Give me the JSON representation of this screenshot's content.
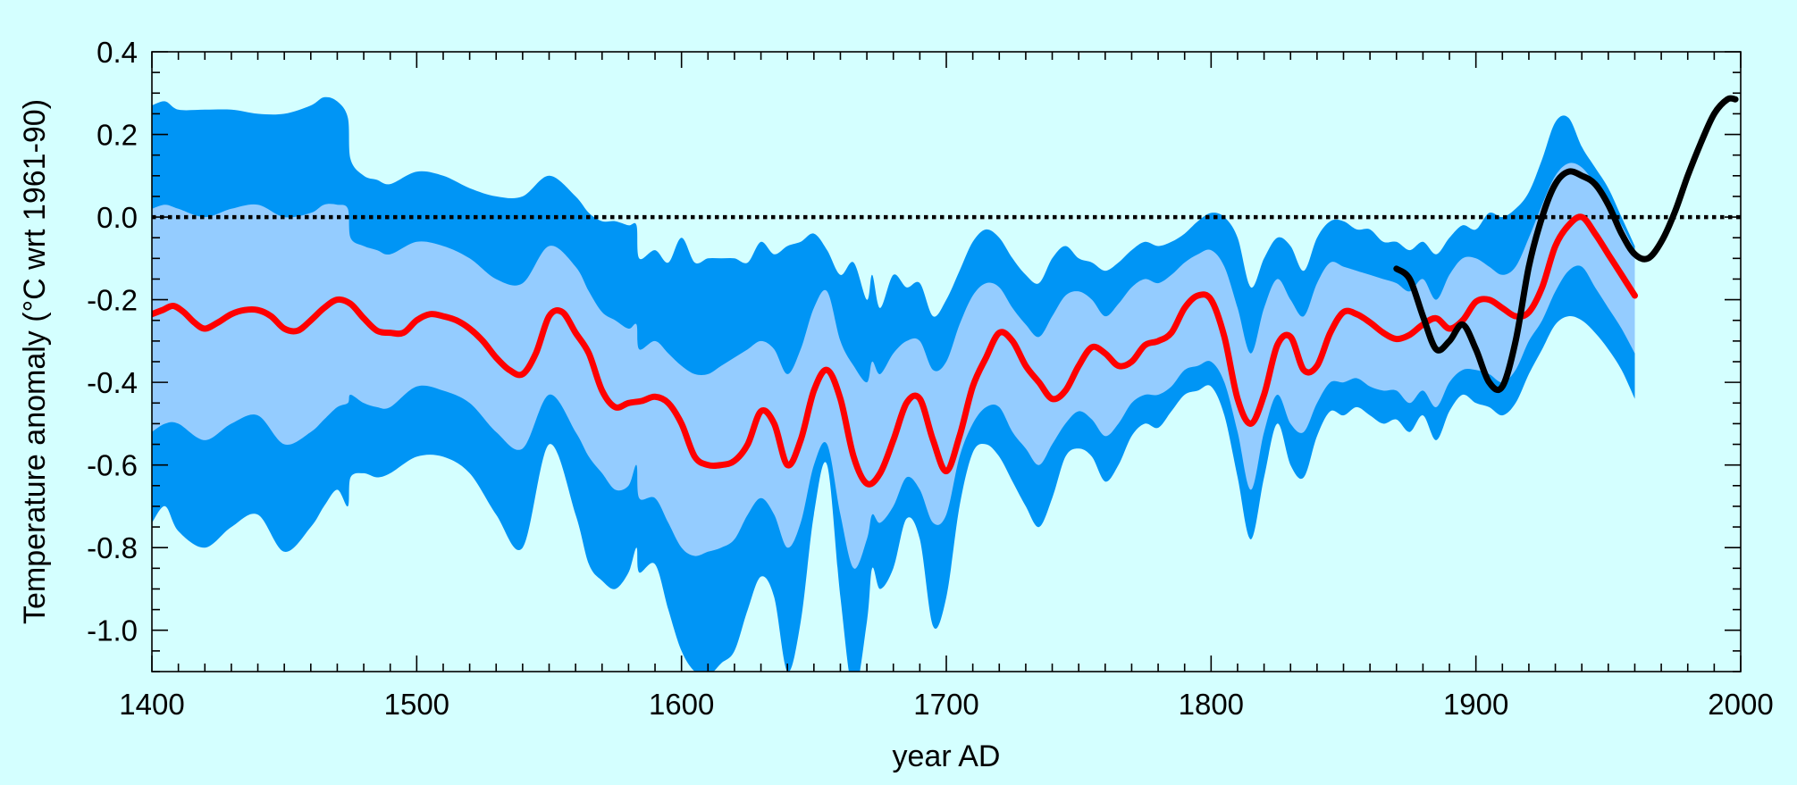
{
  "chart_data": {
    "type": "line",
    "title": "",
    "xlabel": "year AD",
    "ylabel": "Temperature anomaly (°C wrt 1961-90)",
    "xlim": [
      1400,
      2000
    ],
    "ylim": [
      -1.1,
      0.4
    ],
    "x_ticks": [
      1400,
      1500,
      1600,
      1700,
      1800,
      1900,
      2000
    ],
    "x_tick_labels": [
      "1400",
      "1500",
      "1600",
      "1700",
      "1800",
      "1900",
      "2000"
    ],
    "y_ticks": [
      0.4,
      0.2,
      0.0,
      -0.2,
      -0.4,
      -0.6,
      -0.8,
      -1.0
    ],
    "y_tick_labels": [
      "0.4",
      "0.2",
      "0.0",
      "-0.2",
      "-0.4",
      "-0.6",
      "-0.8",
      "-1.0"
    ],
    "grid": false,
    "reference_line": {
      "y": 0.0,
      "style": "dotted",
      "color": "#000000"
    },
    "colors": {
      "background": "#d4ffff",
      "outer_band": "#0095f5",
      "inner_band": "#94ccff",
      "reconstruction": "#ff0000",
      "instrumental": "#000000"
    },
    "series": [
      {
        "kind": "band",
        "fill": "outer",
        "x": [
          1400,
          1405,
          1410,
          1420,
          1430,
          1440,
          1450,
          1460,
          1465,
          1470,
          1474,
          1475,
          1480,
          1485,
          1490,
          1500,
          1510,
          1520,
          1530,
          1540,
          1550,
          1560,
          1565,
          1570,
          1575,
          1580,
          1583,
          1584,
          1590,
          1595,
          1600,
          1605,
          1610,
          1615,
          1620,
          1625,
          1630,
          1635,
          1640,
          1645,
          1650,
          1655,
          1660,
          1665,
          1670,
          1672,
          1675,
          1680,
          1685,
          1690,
          1695,
          1700,
          1705,
          1710,
          1715,
          1720,
          1725,
          1730,
          1735,
          1740,
          1745,
          1750,
          1755,
          1760,
          1765,
          1770,
          1775,
          1780,
          1785,
          1790,
          1795,
          1800,
          1805,
          1810,
          1815,
          1820,
          1825,
          1830,
          1835,
          1840,
          1845,
          1850,
          1855,
          1860,
          1865,
          1870,
          1875,
          1880,
          1885,
          1890,
          1895,
          1900,
          1905,
          1910,
          1915,
          1920,
          1925,
          1930,
          1935,
          1940,
          1945,
          1950,
          1955,
          1960
        ],
        "y_low": [
          -0.74,
          -0.7,
          -0.76,
          -0.8,
          -0.75,
          -0.72,
          -0.81,
          -0.75,
          -0.7,
          -0.66,
          -0.7,
          -0.63,
          -0.62,
          -0.63,
          -0.62,
          -0.58,
          -0.58,
          -0.62,
          -0.72,
          -0.8,
          -0.55,
          -0.72,
          -0.84,
          -0.88,
          -0.9,
          -0.86,
          -0.8,
          -0.86,
          -0.84,
          -0.95,
          -1.05,
          -1.1,
          -1.11,
          -1.08,
          -1.05,
          -0.95,
          -0.87,
          -0.92,
          -1.1,
          -0.98,
          -0.72,
          -0.6,
          -0.92,
          -1.15,
          -0.98,
          -0.85,
          -0.9,
          -0.85,
          -0.73,
          -0.78,
          -0.99,
          -0.92,
          -0.7,
          -0.57,
          -0.55,
          -0.58,
          -0.64,
          -0.7,
          -0.75,
          -0.68,
          -0.58,
          -0.56,
          -0.58,
          -0.64,
          -0.6,
          -0.53,
          -0.5,
          -0.51,
          -0.47,
          -0.43,
          -0.42,
          -0.41,
          -0.48,
          -0.63,
          -0.78,
          -0.63,
          -0.5,
          -0.6,
          -0.63,
          -0.53,
          -0.47,
          -0.48,
          -0.46,
          -0.48,
          -0.5,
          -0.49,
          -0.52,
          -0.48,
          -0.54,
          -0.47,
          -0.43,
          -0.45,
          -0.46,
          -0.48,
          -0.45,
          -0.38,
          -0.32,
          -0.26,
          -0.24,
          -0.25,
          -0.28,
          -0.32,
          -0.37,
          -0.44
        ],
        "y_high": [
          0.27,
          0.28,
          0.26,
          0.26,
          0.26,
          0.25,
          0.25,
          0.27,
          0.29,
          0.28,
          0.24,
          0.14,
          0.1,
          0.09,
          0.08,
          0.11,
          0.1,
          0.07,
          0.05,
          0.05,
          0.1,
          0.05,
          0.01,
          -0.01,
          -0.01,
          -0.02,
          -0.02,
          -0.1,
          -0.08,
          -0.11,
          -0.05,
          -0.11,
          -0.1,
          -0.1,
          -0.1,
          -0.11,
          -0.06,
          -0.09,
          -0.07,
          -0.06,
          -0.04,
          -0.08,
          -0.14,
          -0.11,
          -0.2,
          -0.14,
          -0.22,
          -0.14,
          -0.17,
          -0.16,
          -0.24,
          -0.2,
          -0.13,
          -0.06,
          -0.03,
          -0.05,
          -0.1,
          -0.14,
          -0.16,
          -0.1,
          -0.07,
          -0.1,
          -0.11,
          -0.13,
          -0.11,
          -0.08,
          -0.06,
          -0.07,
          -0.06,
          -0.04,
          -0.01,
          0.01,
          0.0,
          -0.05,
          -0.17,
          -0.1,
          -0.05,
          -0.07,
          -0.13,
          -0.05,
          -0.01,
          -0.01,
          -0.03,
          -0.03,
          -0.06,
          -0.06,
          -0.08,
          -0.06,
          -0.09,
          -0.05,
          -0.02,
          -0.03,
          0.01,
          0.0,
          0.02,
          0.06,
          0.14,
          0.23,
          0.24,
          0.17,
          0.12,
          0.07,
          0.0,
          -0.07
        ]
      },
      {
        "kind": "band",
        "fill": "inner",
        "x": [
          1400,
          1405,
          1410,
          1420,
          1430,
          1440,
          1450,
          1460,
          1465,
          1470,
          1474,
          1475,
          1480,
          1485,
          1490,
          1500,
          1510,
          1520,
          1530,
          1540,
          1550,
          1560,
          1565,
          1570,
          1575,
          1580,
          1583,
          1584,
          1590,
          1595,
          1600,
          1605,
          1610,
          1615,
          1620,
          1625,
          1630,
          1635,
          1640,
          1645,
          1650,
          1655,
          1660,
          1665,
          1670,
          1672,
          1675,
          1680,
          1685,
          1690,
          1695,
          1700,
          1705,
          1710,
          1715,
          1720,
          1725,
          1730,
          1735,
          1740,
          1745,
          1750,
          1755,
          1760,
          1765,
          1770,
          1775,
          1780,
          1785,
          1790,
          1795,
          1800,
          1805,
          1810,
          1815,
          1820,
          1825,
          1830,
          1835,
          1840,
          1845,
          1850,
          1855,
          1860,
          1865,
          1870,
          1875,
          1880,
          1885,
          1890,
          1895,
          1900,
          1905,
          1910,
          1915,
          1920,
          1925,
          1930,
          1935,
          1940,
          1945,
          1950,
          1955,
          1960
        ],
        "y_low": [
          -0.52,
          -0.5,
          -0.5,
          -0.54,
          -0.5,
          -0.48,
          -0.55,
          -0.52,
          -0.49,
          -0.46,
          -0.45,
          -0.43,
          -0.45,
          -0.46,
          -0.46,
          -0.41,
          -0.42,
          -0.45,
          -0.52,
          -0.56,
          -0.43,
          -0.52,
          -0.58,
          -0.62,
          -0.66,
          -0.65,
          -0.6,
          -0.68,
          -0.68,
          -0.74,
          -0.8,
          -0.82,
          -0.81,
          -0.8,
          -0.78,
          -0.72,
          -0.68,
          -0.72,
          -0.8,
          -0.74,
          -0.6,
          -0.55,
          -0.72,
          -0.85,
          -0.78,
          -0.72,
          -0.74,
          -0.7,
          -0.63,
          -0.66,
          -0.74,
          -0.72,
          -0.58,
          -0.5,
          -0.46,
          -0.46,
          -0.52,
          -0.56,
          -0.6,
          -0.55,
          -0.5,
          -0.47,
          -0.49,
          -0.53,
          -0.5,
          -0.45,
          -0.43,
          -0.43,
          -0.41,
          -0.37,
          -0.36,
          -0.35,
          -0.4,
          -0.52,
          -0.66,
          -0.52,
          -0.43,
          -0.5,
          -0.52,
          -0.45,
          -0.4,
          -0.4,
          -0.39,
          -0.41,
          -0.42,
          -0.42,
          -0.45,
          -0.42,
          -0.46,
          -0.4,
          -0.37,
          -0.37,
          -0.38,
          -0.4,
          -0.37,
          -0.3,
          -0.25,
          -0.18,
          -0.13,
          -0.12,
          -0.17,
          -0.22,
          -0.27,
          -0.33
        ],
        "y_high": [
          0.02,
          0.03,
          0.02,
          0.0,
          0.02,
          0.03,
          0.0,
          0.01,
          0.03,
          0.03,
          0.02,
          -0.05,
          -0.07,
          -0.08,
          -0.09,
          -0.06,
          -0.07,
          -0.1,
          -0.15,
          -0.16,
          -0.07,
          -0.12,
          -0.18,
          -0.23,
          -0.25,
          -0.27,
          -0.26,
          -0.32,
          -0.3,
          -0.33,
          -0.36,
          -0.38,
          -0.38,
          -0.36,
          -0.34,
          -0.32,
          -0.3,
          -0.32,
          -0.38,
          -0.32,
          -0.22,
          -0.18,
          -0.3,
          -0.36,
          -0.4,
          -0.35,
          -0.38,
          -0.33,
          -0.3,
          -0.3,
          -0.37,
          -0.35,
          -0.26,
          -0.19,
          -0.16,
          -0.17,
          -0.22,
          -0.26,
          -0.29,
          -0.24,
          -0.19,
          -0.18,
          -0.2,
          -0.24,
          -0.21,
          -0.17,
          -0.15,
          -0.16,
          -0.14,
          -0.11,
          -0.09,
          -0.08,
          -0.12,
          -0.22,
          -0.33,
          -0.22,
          -0.15,
          -0.2,
          -0.24,
          -0.16,
          -0.11,
          -0.12,
          -0.13,
          -0.14,
          -0.15,
          -0.16,
          -0.18,
          -0.15,
          -0.2,
          -0.14,
          -0.1,
          -0.1,
          -0.12,
          -0.14,
          -0.12,
          -0.05,
          0.03,
          0.1,
          0.13,
          0.12,
          0.08,
          0.03,
          -0.02,
          -0.08
        ]
      },
      {
        "kind": "line",
        "color": "#ff0000",
        "x": [
          1400,
          1404,
          1408,
          1412,
          1416,
          1420,
          1425,
          1430,
          1435,
          1440,
          1445,
          1450,
          1455,
          1460,
          1465,
          1470,
          1475,
          1480,
          1485,
          1490,
          1495,
          1500,
          1505,
          1510,
          1515,
          1520,
          1525,
          1530,
          1535,
          1540,
          1545,
          1550,
          1555,
          1560,
          1565,
          1570,
          1575,
          1580,
          1585,
          1590,
          1595,
          1600,
          1605,
          1610,
          1615,
          1620,
          1625,
          1630,
          1635,
          1640,
          1645,
          1650,
          1655,
          1660,
          1665,
          1670,
          1675,
          1680,
          1685,
          1690,
          1695,
          1700,
          1705,
          1710,
          1715,
          1720,
          1725,
          1730,
          1735,
          1740,
          1745,
          1750,
          1755,
          1760,
          1765,
          1770,
          1775,
          1780,
          1785,
          1790,
          1795,
          1800,
          1805,
          1810,
          1815,
          1820,
          1825,
          1830,
          1835,
          1840,
          1845,
          1850,
          1855,
          1860,
          1865,
          1870,
          1875,
          1880,
          1885,
          1890,
          1895,
          1900,
          1905,
          1910,
          1915,
          1920,
          1925,
          1930,
          1935,
          1940,
          1945,
          1950,
          1955,
          1960
        ],
        "y": [
          -0.235,
          -0.225,
          -0.215,
          -0.23,
          -0.255,
          -0.27,
          -0.255,
          -0.235,
          -0.225,
          -0.225,
          -0.24,
          -0.27,
          -0.275,
          -0.25,
          -0.22,
          -0.2,
          -0.21,
          -0.245,
          -0.275,
          -0.28,
          -0.28,
          -0.25,
          -0.235,
          -0.24,
          -0.25,
          -0.27,
          -0.3,
          -0.34,
          -0.37,
          -0.38,
          -0.33,
          -0.24,
          -0.23,
          -0.28,
          -0.33,
          -0.42,
          -0.46,
          -0.45,
          -0.445,
          -0.435,
          -0.45,
          -0.5,
          -0.58,
          -0.6,
          -0.6,
          -0.59,
          -0.55,
          -0.47,
          -0.5,
          -0.6,
          -0.54,
          -0.42,
          -0.37,
          -0.44,
          -0.58,
          -0.645,
          -0.62,
          -0.54,
          -0.45,
          -0.44,
          -0.54,
          -0.615,
          -0.53,
          -0.41,
          -0.34,
          -0.28,
          -0.3,
          -0.36,
          -0.4,
          -0.44,
          -0.42,
          -0.36,
          -0.315,
          -0.33,
          -0.36,
          -0.35,
          -0.31,
          -0.3,
          -0.28,
          -0.22,
          -0.19,
          -0.2,
          -0.29,
          -0.44,
          -0.5,
          -0.43,
          -0.31,
          -0.29,
          -0.37,
          -0.36,
          -0.28,
          -0.23,
          -0.235,
          -0.255,
          -0.28,
          -0.295,
          -0.285,
          -0.26,
          -0.245,
          -0.27,
          -0.25,
          -0.205,
          -0.2,
          -0.22,
          -0.24,
          -0.23,
          -0.17,
          -0.07,
          -0.02,
          -0.0,
          -0.04,
          -0.09,
          -0.14,
          -0.19
        ]
      },
      {
        "kind": "line",
        "color": "#000000",
        "x": [
          1870,
          1875,
          1880,
          1885,
          1890,
          1895,
          1900,
          1905,
          1910,
          1915,
          1920,
          1925,
          1930,
          1935,
          1940,
          1945,
          1950,
          1955,
          1960,
          1965,
          1970,
          1975,
          1980,
          1985,
          1990,
          1995,
          1998
        ],
        "y": [
          -0.125,
          -0.15,
          -0.24,
          -0.32,
          -0.3,
          -0.26,
          -0.32,
          -0.4,
          -0.41,
          -0.3,
          -0.12,
          0.0,
          0.08,
          0.11,
          0.1,
          0.08,
          0.03,
          -0.04,
          -0.09,
          -0.1,
          -0.06,
          0.01,
          0.1,
          0.18,
          0.25,
          0.285,
          0.285
        ]
      }
    ]
  }
}
